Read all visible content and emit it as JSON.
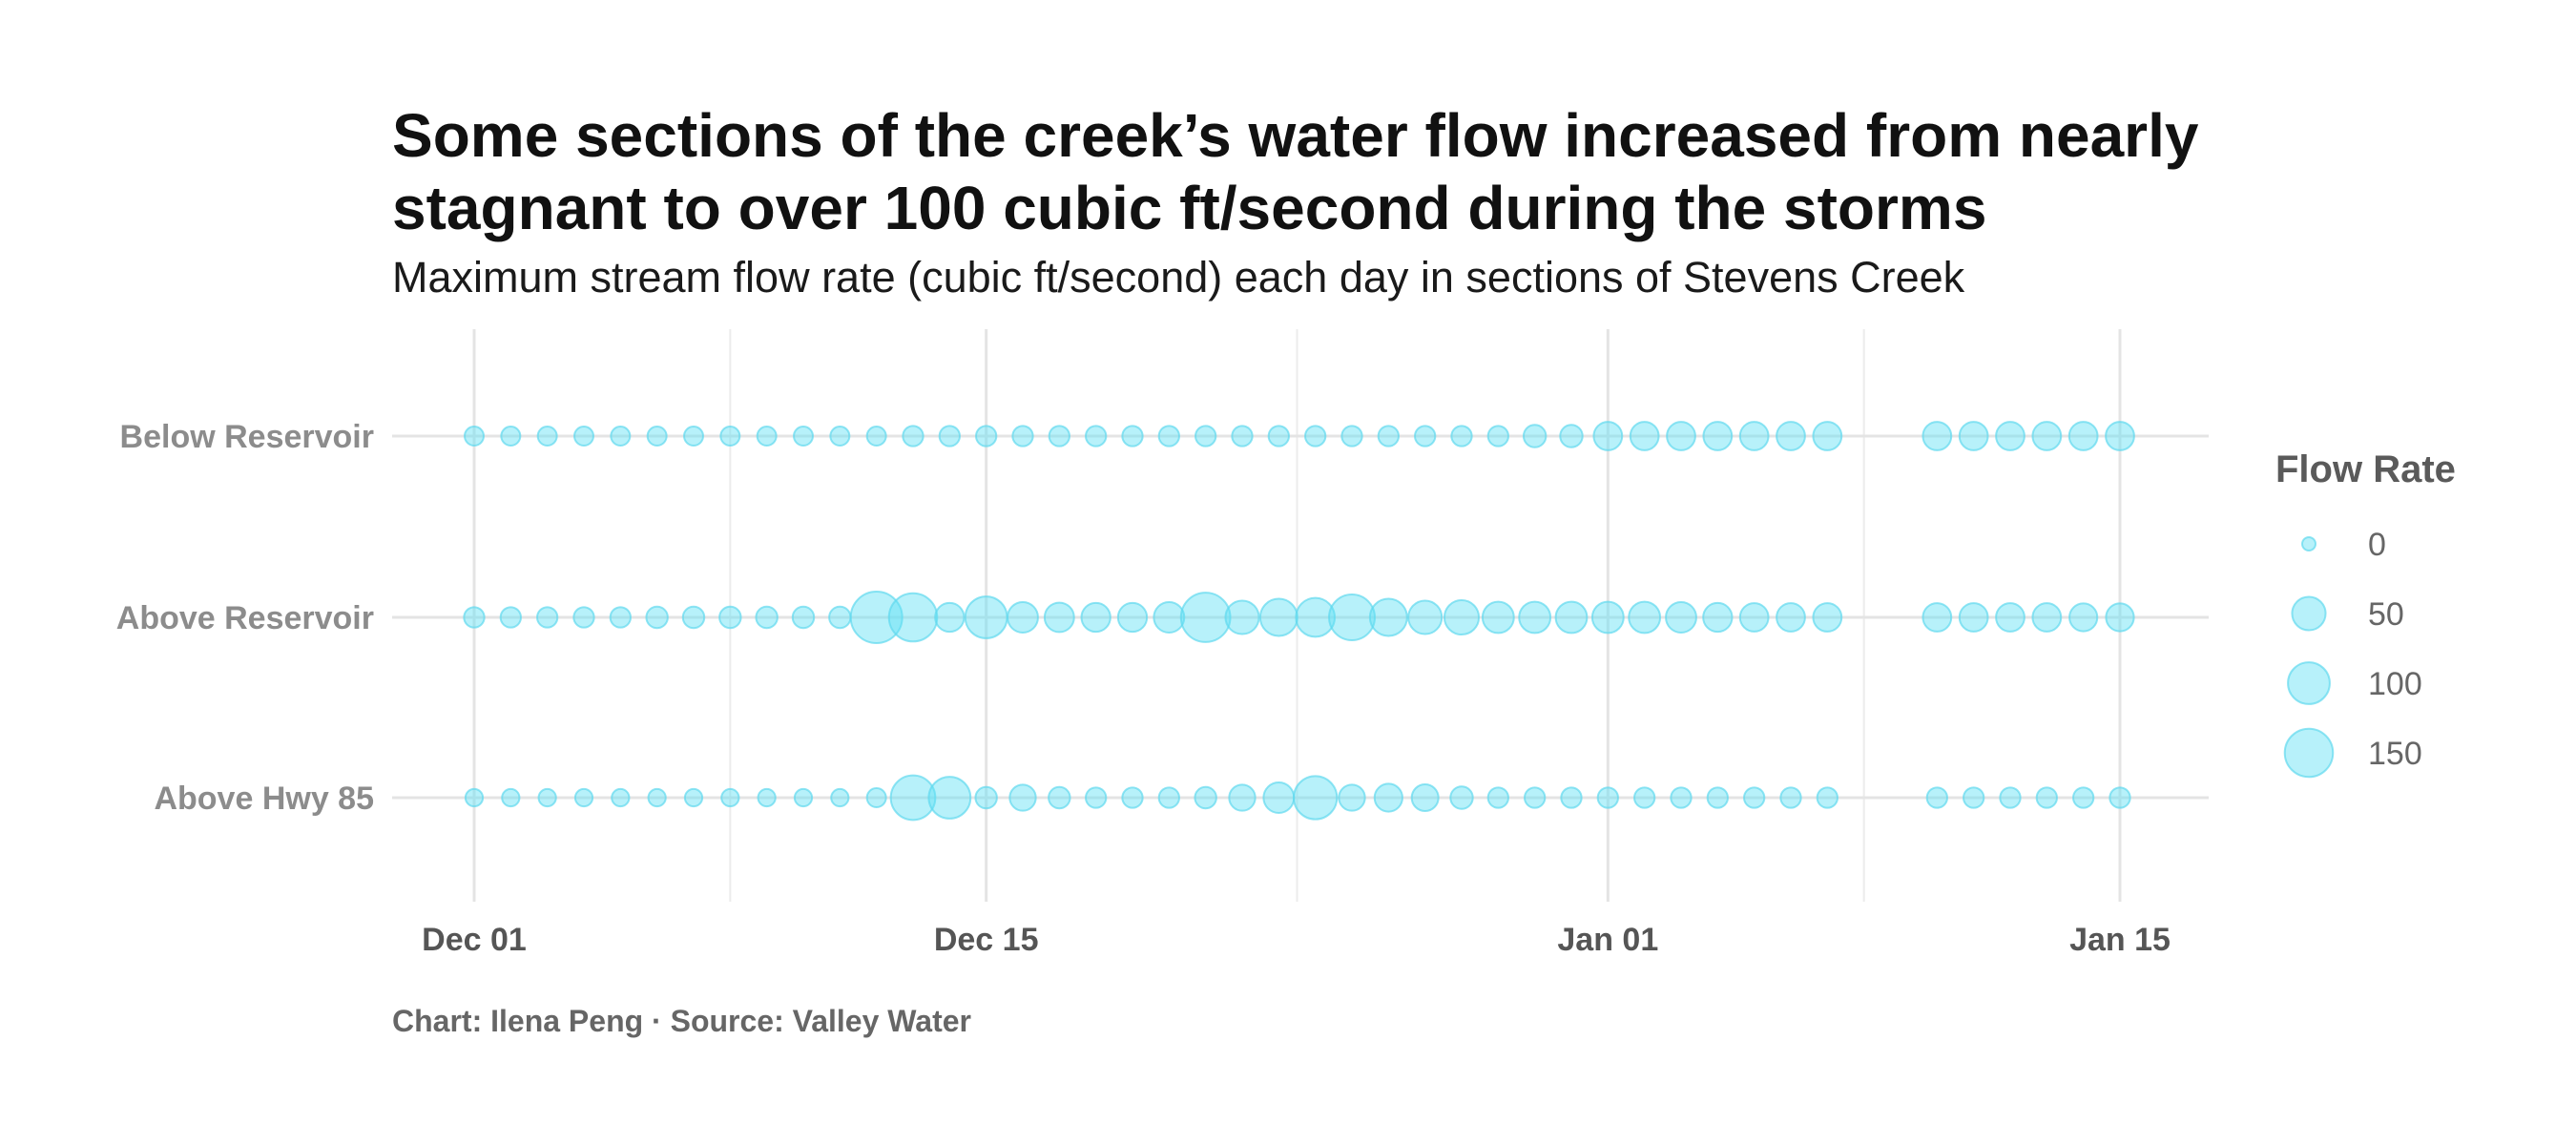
{
  "title": "Some sections of the creek’s water flow increased from nearly stagnant to over 100 cubic ft/second during the storms",
  "subtitle": "Maximum stream flow rate (cubic ft/second) each day in sections of Stevens Creek",
  "caption": "Chart: Ilena Peng · Source: Valley Water",
  "chart_data": {
    "type": "scatter",
    "x_axis": {
      "ticks": [
        "Dec 01",
        "Dec 15",
        "Jan 01",
        "Jan 15"
      ],
      "tick_dates": [
        "2022-12-01",
        "2022-12-15",
        "2023-01-01",
        "2023-01-15"
      ],
      "range": [
        "2022-11-30",
        "2023-01-17"
      ]
    },
    "categories": [
      "Below Reservoir",
      "Above Reservoir",
      "Above Hwy 85"
    ],
    "dates": [
      "2022-12-01",
      "2022-12-02",
      "2022-12-03",
      "2022-12-04",
      "2022-12-05",
      "2022-12-06",
      "2022-12-07",
      "2022-12-08",
      "2022-12-09",
      "2022-12-10",
      "2022-12-11",
      "2022-12-12",
      "2022-12-13",
      "2022-12-14",
      "2022-12-15",
      "2022-12-16",
      "2022-12-17",
      "2022-12-18",
      "2022-12-19",
      "2022-12-20",
      "2022-12-21",
      "2022-12-22",
      "2022-12-23",
      "2022-12-24",
      "2022-12-25",
      "2022-12-26",
      "2022-12-27",
      "2022-12-28",
      "2022-12-29",
      "2022-12-30",
      "2022-12-31",
      "2023-01-01",
      "2023-01-02",
      "2023-01-03",
      "2023-01-04",
      "2023-01-05",
      "2023-01-06",
      "2023-01-07",
      "2023-01-10",
      "2023-01-11",
      "2023-01-12",
      "2023-01-13",
      "2023-01-14",
      "2023-01-15"
    ],
    "series": [
      {
        "name": "Below Reservoir",
        "values": [
          4,
          4,
          4,
          4,
          4,
          4,
          4,
          4,
          4,
          4,
          4,
          4,
          6,
          6,
          6,
          6,
          6,
          6,
          6,
          6,
          6,
          6,
          6,
          6,
          6,
          6,
          6,
          6,
          6,
          10,
          10,
          28,
          28,
          28,
          28,
          28,
          28,
          28,
          28,
          28,
          28,
          28,
          28,
          28
        ]
      },
      {
        "name": "Above Reservoir",
        "values": [
          6,
          6,
          6,
          6,
          6,
          8,
          8,
          8,
          8,
          8,
          8,
          180,
          150,
          30,
          100,
          36,
          32,
          30,
          30,
          36,
          160,
          50,
          70,
          80,
          130,
          70,
          50,
          55,
          40,
          40,
          40,
          40,
          40,
          36,
          30,
          28,
          28,
          28,
          28,
          28,
          28,
          28,
          26,
          26
        ]
      },
      {
        "name": "Above Hwy 85",
        "values": [
          2,
          2,
          2,
          2,
          2,
          2,
          2,
          2,
          2,
          2,
          2,
          4,
          120,
          100,
          8,
          20,
          8,
          6,
          6,
          6,
          8,
          20,
          36,
          110,
          20,
          26,
          22,
          10,
          6,
          6,
          6,
          6,
          6,
          6,
          6,
          6,
          6,
          6,
          6,
          6,
          6,
          6,
          6,
          6
        ]
      }
    ],
    "size_legend": {
      "title": "Flow Rate",
      "values": [
        0,
        50,
        100,
        150
      ],
      "labels": [
        "0",
        "50",
        "100",
        "150"
      ]
    },
    "grid": true,
    "legend_position": "right",
    "colors": {
      "point_fill": "#5fe0f3",
      "point_stroke": "#5fd8ee"
    }
  }
}
